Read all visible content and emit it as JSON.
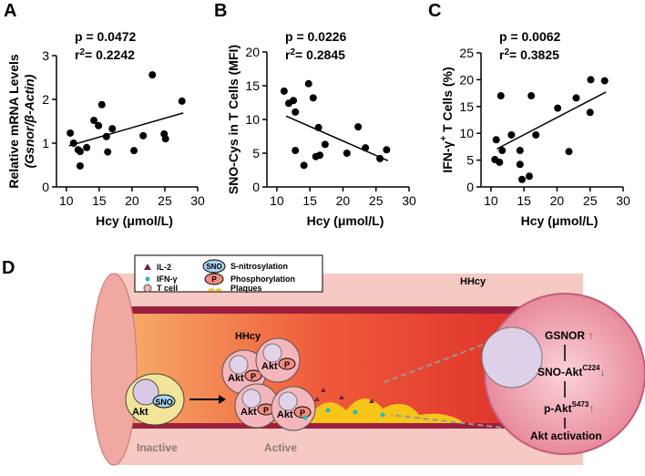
{
  "chart_data": [
    {
      "type": "scatter",
      "panel": "A",
      "p_text": "p = 0.0472",
      "r2_base": "r",
      "r2_sup": "2",
      "r2_rest": "= 0.2242",
      "x_label": "Hcy (μmol/L)",
      "y_label": [
        "Relative mRNA Levels",
        "(Gsnor/β-Actin)"
      ],
      "x": [
        10.6,
        11.1,
        11.8,
        12.1,
        12.1,
        13.1,
        14.2,
        14.9,
        15.4,
        16.1,
        16.3,
        17.0,
        20.3,
        21.7,
        23.1,
        24.9,
        25.1,
        27.6
      ],
      "values": [
        1.23,
        1.0,
        0.85,
        0.48,
        0.81,
        0.9,
        1.52,
        1.4,
        1.88,
        1.15,
        0.8,
        1.33,
        0.83,
        1.17,
        2.56,
        1.21,
        1.1,
        1.96
      ],
      "fit_x": [
        10.4,
        27.8
      ],
      "fit_y": [
        0.94,
        1.69
      ],
      "color": "#000000",
      "xlim": [
        8.5,
        30
      ],
      "xticks": [
        10,
        15,
        20,
        25,
        30
      ],
      "ylim": [
        0,
        3
      ],
      "yticks": [
        0,
        1,
        2,
        3
      ]
    },
    {
      "type": "scatter",
      "panel": "B",
      "p_text": "p = 0.0226",
      "r2_base": "r",
      "r2_sup": "2",
      "r2_rest": "= 0.2845",
      "x_label": "Hcy (μmol/L)",
      "y_label": [
        "SNO-Cys in T Cells (MFI)"
      ],
      "x": [
        11.1,
        11.8,
        12.5,
        12.8,
        12.8,
        14.1,
        14.8,
        15.5,
        15.9,
        16.3,
        16.5,
        17.3,
        20.6,
        22.3,
        23.4,
        25.6,
        26.6
      ],
      "values": [
        14.2,
        12.4,
        12.8,
        11.1,
        5.4,
        3.2,
        15.3,
        13.2,
        4.5,
        8.8,
        4.7,
        6.3,
        5.0,
        8.9,
        5.8,
        4.2,
        5.5
      ],
      "fit_x": [
        11.4,
        26.8
      ],
      "fit_y": [
        10.5,
        3.9
      ],
      "color": "#000000",
      "xlim": [
        8.5,
        30
      ],
      "xticks": [
        10,
        15,
        20,
        25,
        30
      ],
      "ylim": [
        0,
        20
      ],
      "yticks": [
        0,
        5,
        10,
        15,
        20
      ]
    },
    {
      "type": "scatter",
      "panel": "C",
      "p_text": "p = 0.0062",
      "r2_base": "r",
      "r2_sup": "2",
      "r2_rest": "= 0.3825",
      "x_label": "Hcy (μmol/L)",
      "y_label": [
        "IFN-γ",
        "+",
        " T Cells (%)"
      ],
      "x": [
        10.6,
        10.8,
        11.3,
        11.5,
        11.7,
        13.1,
        14.4,
        14.4,
        14.7,
        15.8,
        16.1,
        16.8,
        20.1,
        21.8,
        22.9,
        25.0,
        25.1,
        27.2
      ],
      "values": [
        5.1,
        8.8,
        4.6,
        17.0,
        6.8,
        9.7,
        6.8,
        4.2,
        1.4,
        2.0,
        17.0,
        9.7,
        14.7,
        6.6,
        16.6,
        13.9,
        20.0,
        19.8
      ],
      "fit_x": [
        10.9,
        27.4
      ],
      "fit_y": [
        7.1,
        17.7
      ],
      "color": "#000000",
      "xlim": [
        8.5,
        30
      ],
      "xticks": [
        10,
        15,
        20,
        25,
        30
      ],
      "ylim": [
        0,
        25
      ],
      "yticks": [
        0,
        5,
        10,
        15,
        20,
        25
      ]
    }
  ],
  "diagram": {
    "panel": "D",
    "legend": {
      "il2": "IL-2",
      "ifng": "IFN-γ",
      "tcell": "T cell",
      "plaques": "Plaques",
      "sno_badge": "SNO",
      "sno": "S-nitrosylation",
      "p_badge": "P",
      "p": "Phosphorylation"
    },
    "hhcy": [
      "HHcy",
      "HHcy"
    ],
    "inactive_cell": {
      "akt": "Akt",
      "sno": "SNO"
    },
    "active_cells": [
      {
        "akt": "Akt",
        "p": "P"
      },
      {
        "akt": "Akt",
        "p": "P"
      },
      {
        "akt": "Akt",
        "p": "P"
      },
      {
        "akt": "Akt",
        "p": "P"
      }
    ],
    "inactive": "Inactive",
    "active": "Active",
    "pathway": {
      "gsnor": "GSNOR",
      "gsnor_arrow": "↑",
      "sno_akt": "SNO-Akt",
      "sno_akt_sup": "C224",
      "sno_akt_arrow": "↓",
      "p_akt": "p-Akt",
      "p_akt_sup": "S473",
      "p_akt_arrow": "↑",
      "activation": "Akt activation"
    }
  }
}
